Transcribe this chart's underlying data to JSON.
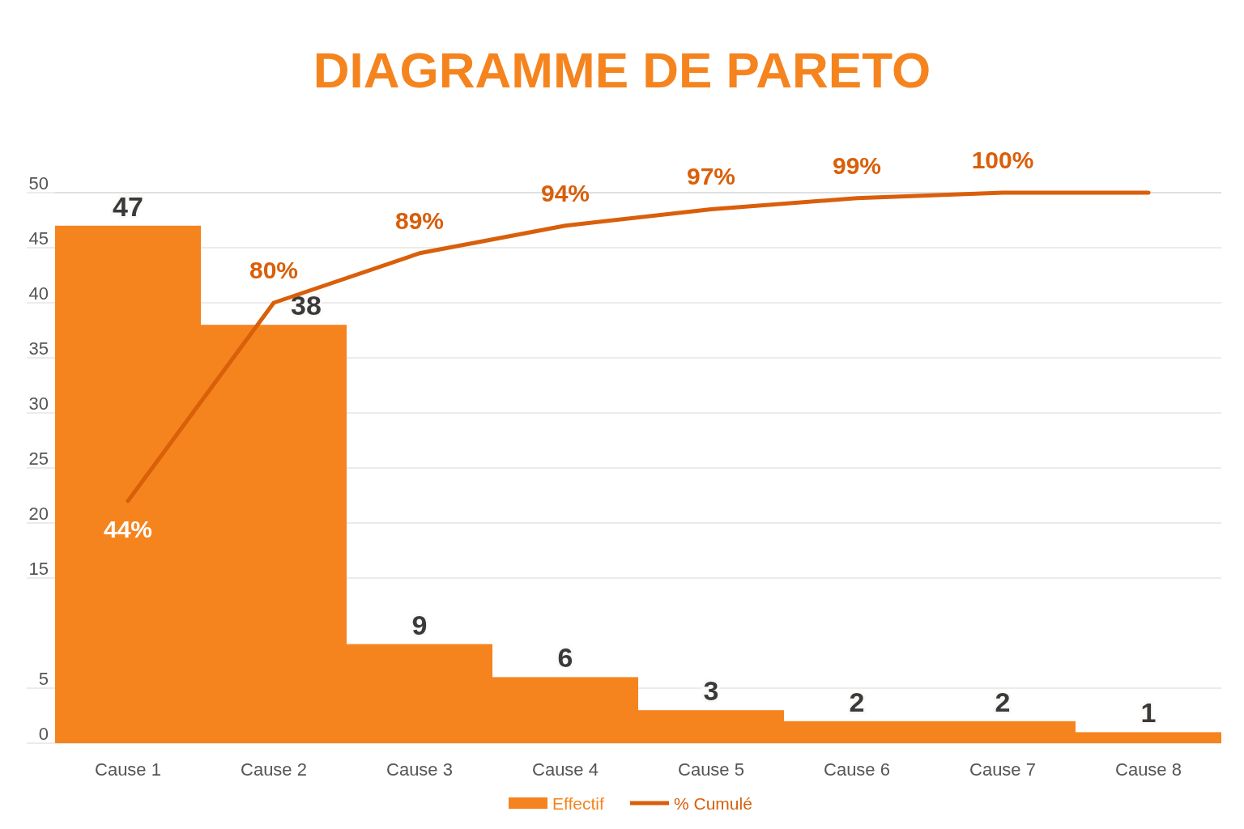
{
  "chart_data": {
    "type": "bar",
    "title": "DIAGRAMME DE PARETO",
    "categories": [
      "Cause 1",
      "Cause 2",
      "Cause 3",
      "Cause 4",
      "Cause 5",
      "Cause 6",
      "Cause 7",
      "Cause 8"
    ],
    "series": [
      {
        "name": "Effectif",
        "color": "#f5841f",
        "values": [
          47,
          38,
          9,
          6,
          3,
          2,
          2,
          1
        ]
      },
      {
        "name": "% Cumulé",
        "type": "line",
        "axis": "y2",
        "color": "#d95f0a",
        "values": [
          44,
          80,
          89,
          94,
          97,
          99,
          100,
          100
        ],
        "value_labels": [
          "44%",
          "80%",
          "89%",
          "94%",
          "97%",
          "99%",
          "100%",
          null
        ]
      }
    ],
    "ylim": [
      0,
      50
    ],
    "yticks": [
      0,
      5,
      15,
      20,
      25,
      30,
      35,
      40,
      45,
      50
    ],
    "y2lim": [
      0,
      100
    ],
    "grid": "y",
    "data_labels": true,
    "legend": "bottom",
    "tick_labels": "xy"
  }
}
